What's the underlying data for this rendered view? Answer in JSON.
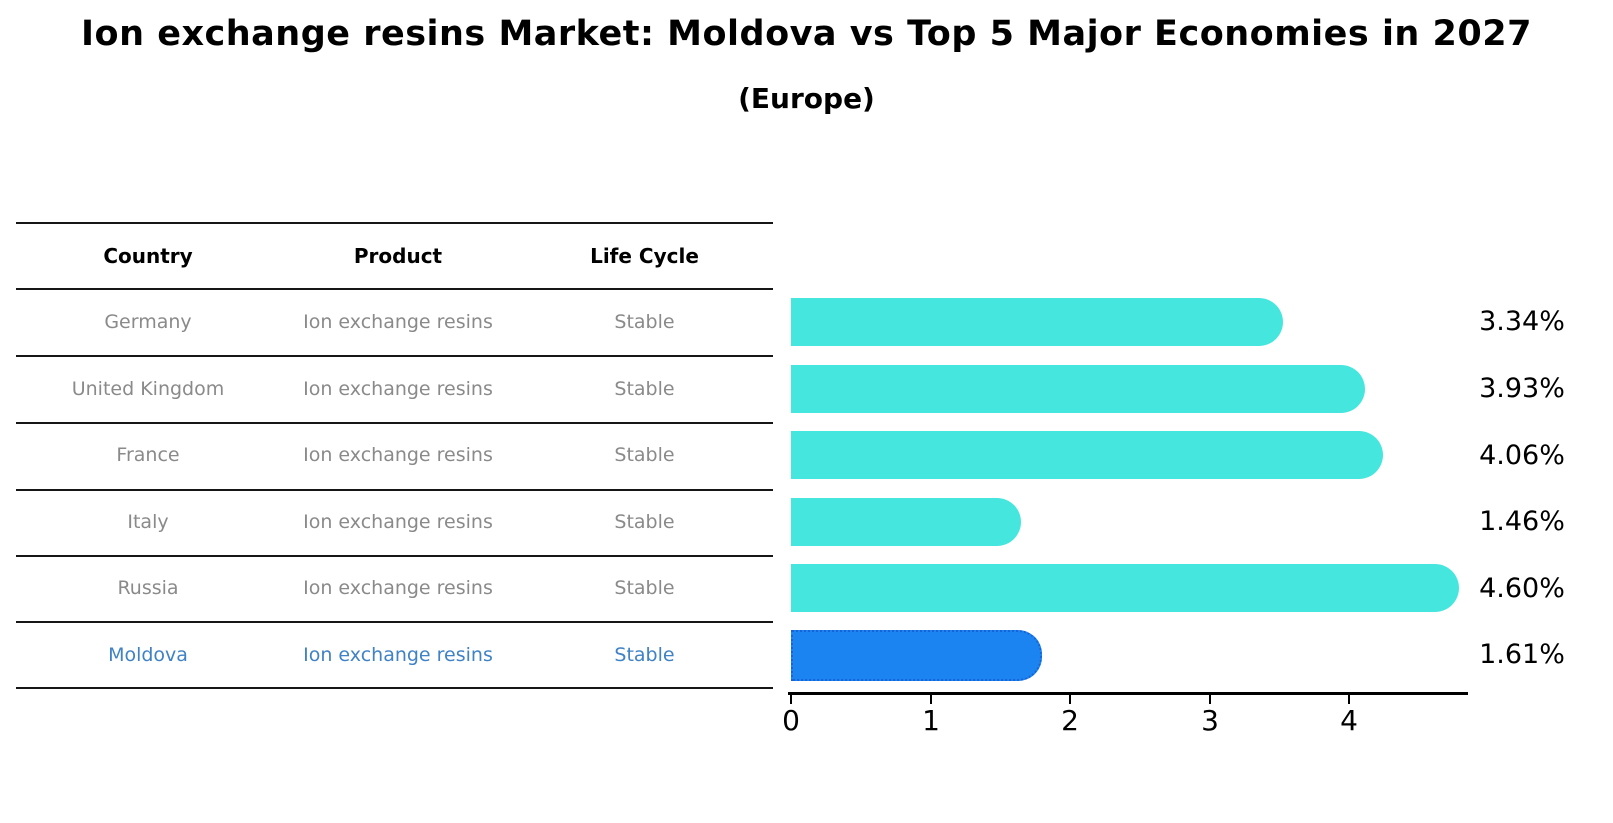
{
  "title": "Ion exchange resins Market: Moldova vs Top 5 Major Economies in 2027",
  "subtitle": "(Europe)",
  "table": {
    "headers": [
      "Country",
      "Product",
      "Life Cycle"
    ],
    "rows": [
      {
        "country": "Germany",
        "product": "Ion exchange resins",
        "life_cycle": "Stable",
        "highlight": false
      },
      {
        "country": "United Kingdom",
        "product": "Ion exchange resins",
        "life_cycle": "Stable",
        "highlight": false
      },
      {
        "country": "France",
        "product": "Ion exchange resins",
        "life_cycle": "Stable",
        "highlight": false
      },
      {
        "country": "Italy",
        "product": "Ion exchange resins",
        "life_cycle": "Stable",
        "highlight": false
      },
      {
        "country": "Russia",
        "product": "Ion exchange resins",
        "life_cycle": "Stable",
        "highlight": false
      },
      {
        "country": "Moldova",
        "product": "Ion exchange resins",
        "life_cycle": "Stable",
        "highlight": true
      }
    ]
  },
  "chart_data": {
    "type": "bar",
    "orientation": "horizontal",
    "title": "Ion exchange resins Market: Moldova vs Top 5 Major Economies in 2027 (Europe)",
    "categories": [
      "Germany",
      "United Kingdom",
      "France",
      "Italy",
      "Russia",
      "Moldova"
    ],
    "values": [
      3.34,
      3.93,
      4.06,
      1.46,
      4.6,
      1.61
    ],
    "value_labels": [
      "3.34%",
      "3.93%",
      "4.06%",
      "1.46%",
      "4.60%",
      "1.61%"
    ],
    "xlabel": "",
    "ylabel": "",
    "xlim": [
      0,
      4.85
    ],
    "x_ticks": [
      "0",
      "1",
      "2",
      "3",
      "4"
    ],
    "grid": false,
    "legend": "none",
    "highlight_index": 5
  },
  "colors": {
    "bar": "#45E6DE",
    "highlight_bar": "#1C84F0",
    "highlight_bar_border": "#1565D8",
    "row_text": "#8A8A8A",
    "highlight_row_text": "#3F82C6",
    "header_text": "#000000",
    "axis": "#000000"
  }
}
